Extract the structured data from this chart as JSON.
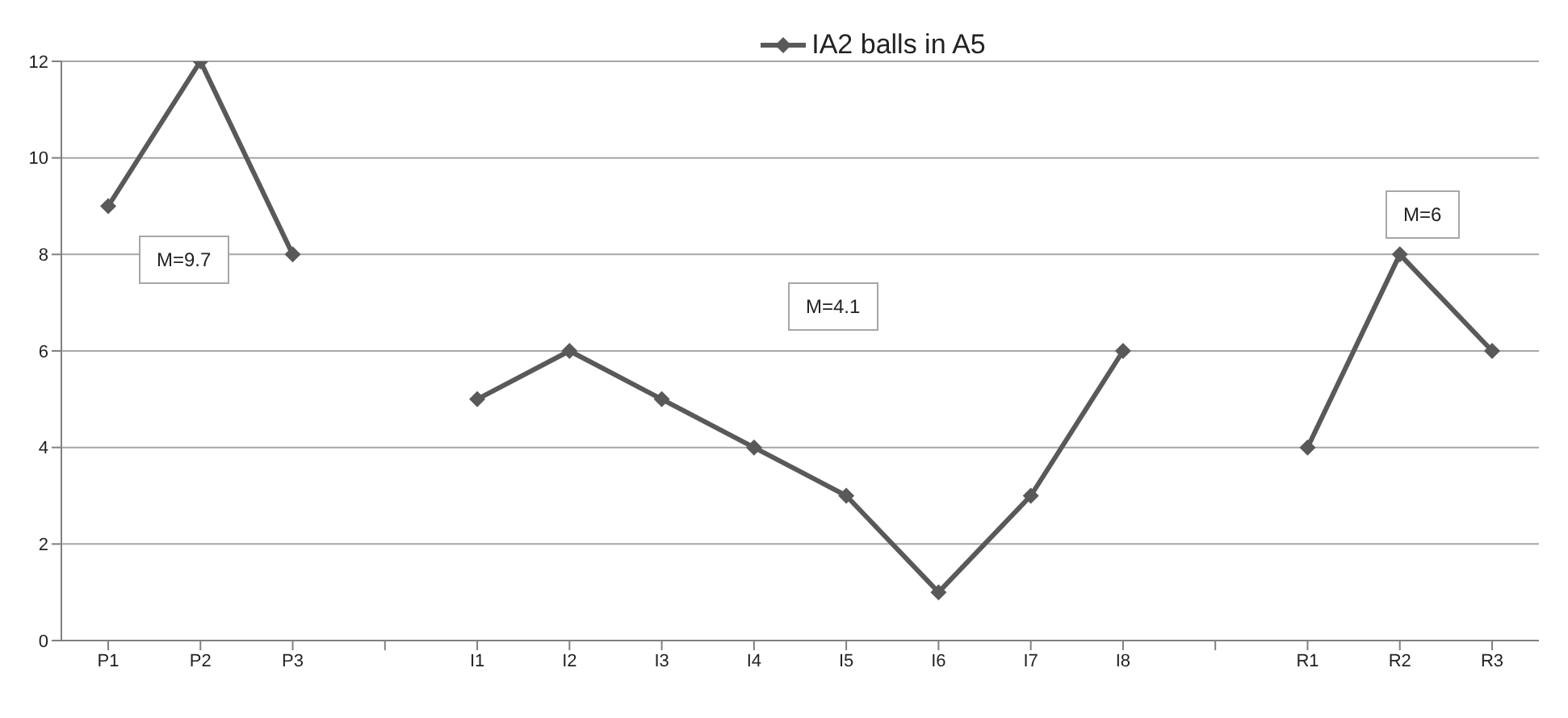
{
  "chart_data": {
    "type": "line",
    "categories": [
      "P1",
      "P2",
      "P3",
      null,
      "I1",
      "I2",
      "I3",
      "I4",
      "I5",
      "I6",
      "I7",
      "I8",
      null,
      "R1",
      "R2",
      "R3"
    ],
    "series": [
      {
        "name": "IA2 balls in A5",
        "color": "#595959",
        "values": [
          9,
          12,
          8,
          null,
          5,
          6,
          5,
          4,
          3,
          1,
          3,
          6,
          null,
          4,
          8,
          6
        ]
      }
    ],
    "ylim": [
      0,
      12
    ],
    "yticks": [
      0,
      2,
      4,
      6,
      8,
      10,
      12
    ],
    "grid": "y",
    "legend": "top",
    "marker": "diamond",
    "line_style": "solid",
    "annotations": [
      "M=9.7",
      "M=4.1",
      "M=6"
    ]
  }
}
